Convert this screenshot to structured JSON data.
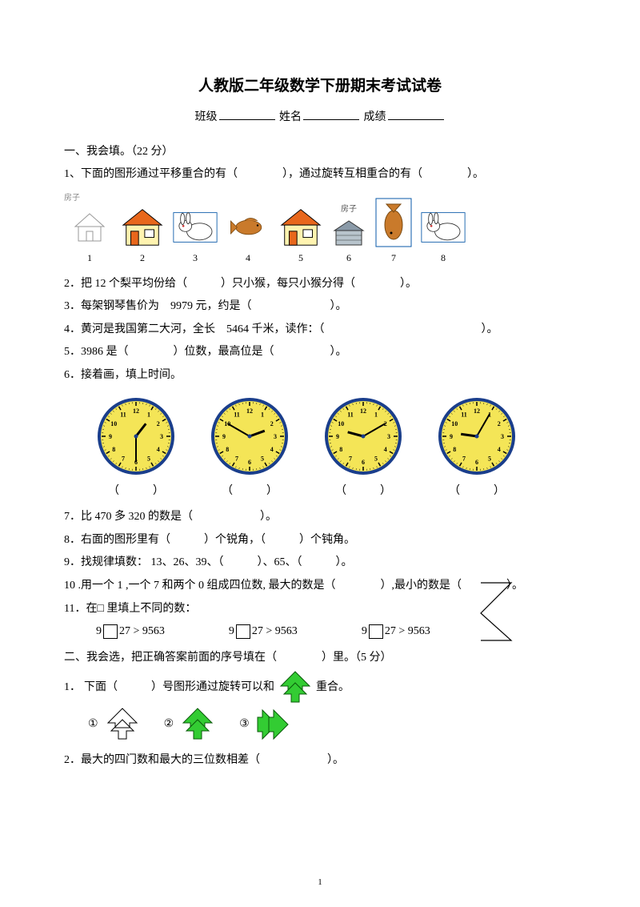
{
  "title": "人教版二年级数学下册期末考试试卷",
  "info": {
    "class": "班级",
    "name": "姓名",
    "score": "成绩"
  },
  "section1": {
    "heading": "一、我会填。（22 分）"
  },
  "q1": {
    "text": "1、下面的图形通过平移重合的有（　　　　），通过旋转互相重合的有（　　　　）。"
  },
  "img_labels": {
    "l1": "1",
    "l2": "2",
    "l3": "3",
    "l4": "4",
    "l5": "5",
    "l6": "6",
    "l7": "7",
    "l8": "8",
    "house": "房子"
  },
  "q2": {
    "text": "2．把 12 个梨平均份给（　　　）只小猴，每只小猴分得（　　　　）。"
  },
  "q3": {
    "text": "3．每架钢琴售价为　9979 元，约是（　　　　　　　）。"
  },
  "q4": {
    "text": "4．黄河是我国第二大河，全长　5464 千米，读作：（　　　　　　　　　　　　　　）。"
  },
  "q5": {
    "text": "5．3986 是（　　　　）位数，最高位是（　　　　　）。"
  },
  "q6": {
    "text": "6．接着画，填上时间。"
  },
  "clocks": {
    "face_fill": "#f4e557",
    "face_stroke": "#1a3e8c",
    "center_fill": "#1a3e8c",
    "hands_color": "#000000",
    "c1": {
      "hour_angle": 38,
      "minute_angle": 180
    },
    "c2": {
      "hour_angle": 70,
      "minute_angle": 300
    },
    "c3": {
      "hour_angle": 285,
      "minute_angle": 60
    },
    "c4": {
      "hour_angle": 278,
      "minute_angle": 30
    },
    "paren": "（　　　）"
  },
  "q7": {
    "text": "7．比 470 多 320 的数是（　　　　　　）。"
  },
  "q8": {
    "text": "8．右面的图形里有（　　　）个锐角，（　　　）个钝角。"
  },
  "q9": {
    "text": "9．找规律填数： 13、26、39、（　　　）、65、（　　　）。"
  },
  "q10": {
    "text": "10 .用一个 1 ,一个 7 和两个 0 组成四位数, 最大的数是（　　　　）,最小的数是（　　　　）。"
  },
  "q11": {
    "text": "11．在□ 里填上不同的数：",
    "item_a": "9",
    "item_b": "27 > 9563"
  },
  "section2": {
    "heading": "二、我会选，把正确答案前面的序号填在（　　　　）里。（5 分）"
  },
  "s2q1": {
    "lead": "1．",
    "text": "下面（　　　）号图形通过旋转可以和",
    "tail": "重合。",
    "opt1": "①",
    "opt2": "②",
    "opt3": "③",
    "arrow_green": "#33cc33",
    "arrow_stroke": "#0a5a0a"
  },
  "s2q2": {
    "text": "2．最大的四门数和最大的三位数相差（　　　　　　）。"
  },
  "pagenum": "1"
}
